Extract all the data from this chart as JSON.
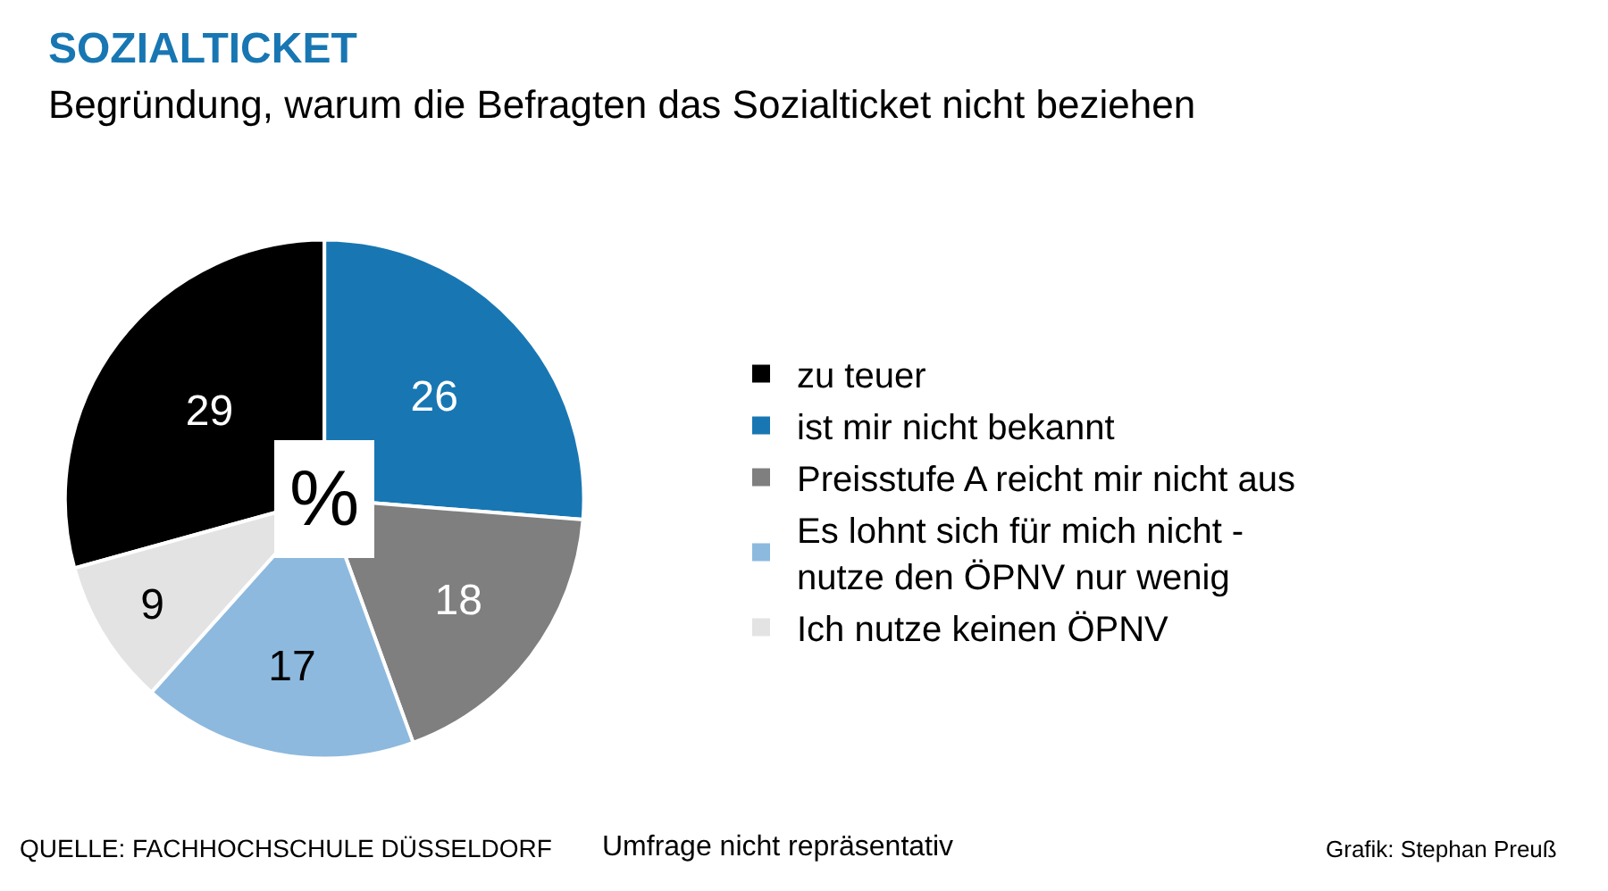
{
  "chart_data": {
    "type": "pie",
    "title": "SOZIALTICKET",
    "subtitle": "Begründung, warum die Befragten das Sozialticket nicht beziehen",
    "categories": [
      "zu teuer",
      "ist mir nicht bekannt",
      "Preisstufe A reicht mir nicht aus",
      "Es lohnt sich für mich nicht -\nnutze den ÖPNV nur wenig",
      "Ich nutze keinen ÖPNV"
    ],
    "values": [
      29,
      26,
      18,
      17,
      9
    ],
    "colors": [
      "#000000",
      "#1877b3",
      "#7f7f7f",
      "#8db9de",
      "#e3e3e3"
    ],
    "data_labels": true,
    "legend": "right",
    "annotations": [
      "%",
      "QUELLE: FACHHOCHSCHULE DÜSSELDORF",
      "Umfrage nicht repräsentativ",
      "Grafik: Stephan Preuß"
    ]
  }
}
